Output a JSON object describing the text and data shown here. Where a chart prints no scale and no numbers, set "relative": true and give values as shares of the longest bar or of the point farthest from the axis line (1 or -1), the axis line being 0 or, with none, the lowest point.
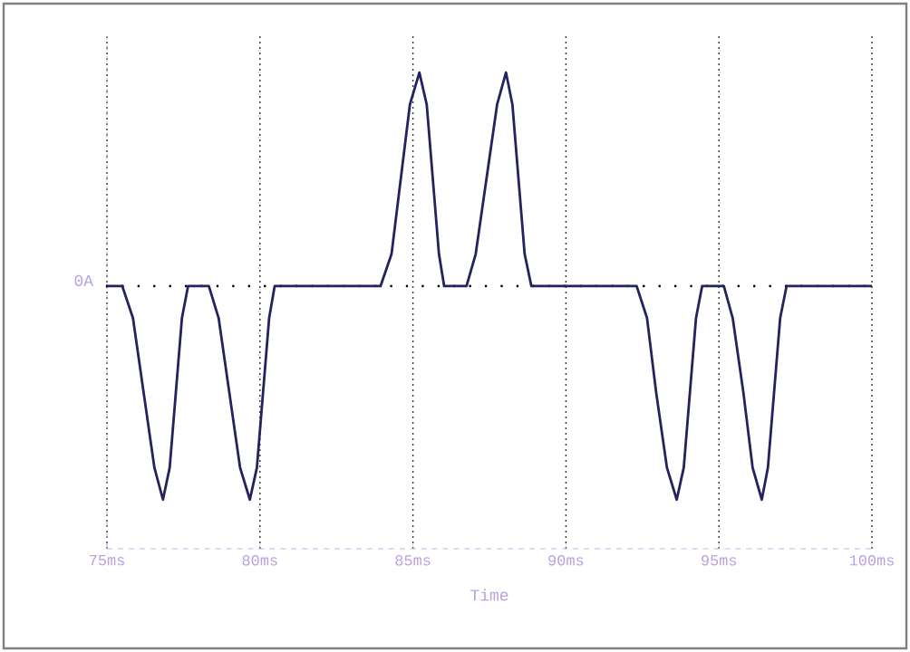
{
  "chart_data": {
    "type": "line",
    "xlabel": "Time",
    "relative": true,
    "xlim": [
      75,
      100
    ],
    "xticks": [
      {
        "value": 75,
        "label": "75ms"
      },
      {
        "value": 80,
        "label": "80ms"
      },
      {
        "value": 85,
        "label": "85ms"
      },
      {
        "value": 90,
        "label": "90ms"
      },
      {
        "value": 95,
        "label": "95ms"
      },
      {
        "value": 100,
        "label": "100ms"
      }
    ],
    "grid": "x",
    "ref_lines": [
      {
        "axis": "y",
        "value": 0,
        "label": "0A",
        "line_style": "dotted",
        "color": "#000000"
      }
    ],
    "series": [
      {
        "color": "#23235f",
        "line_style": "solid",
        "marker": "none",
        "x": [
          75,
          75.5,
          75.85,
          76.2,
          76.55,
          76.83,
          77.05,
          77.25,
          77.45,
          77.65,
          78.33,
          78.65,
          79,
          79.35,
          79.67,
          79.9,
          80.1,
          80.3,
          80.48,
          83.94,
          84.3,
          84.6,
          84.9,
          85.21,
          85.45,
          85.65,
          85.85,
          86.02,
          86.75,
          87.05,
          87.4,
          87.75,
          88.04,
          88.25,
          88.45,
          88.65,
          88.87,
          92.31,
          92.65,
          92.95,
          93.3,
          93.62,
          93.85,
          94.05,
          94.25,
          94.45,
          95.16,
          95.45,
          95.8,
          96.1,
          96.4,
          96.6,
          96.8,
          97,
          97.21,
          100
        ],
        "values": [
          0,
          0,
          -0.15,
          -0.5,
          -0.85,
          -1,
          -0.85,
          -0.5,
          -0.15,
          0,
          0,
          -0.15,
          -0.5,
          -0.85,
          -1,
          -0.85,
          -0.5,
          -0.15,
          0,
          0,
          0.15,
          0.5,
          0.85,
          1,
          0.85,
          0.5,
          0.15,
          0,
          0,
          0.15,
          0.5,
          0.85,
          1,
          0.85,
          0.5,
          0.15,
          0,
          0,
          -0.15,
          -0.5,
          -0.85,
          -1,
          -0.85,
          -0.5,
          -0.15,
          0,
          0,
          -0.15,
          -0.5,
          -0.85,
          -1,
          -0.85,
          -0.5,
          -0.15,
          0,
          0
        ]
      }
    ]
  }
}
